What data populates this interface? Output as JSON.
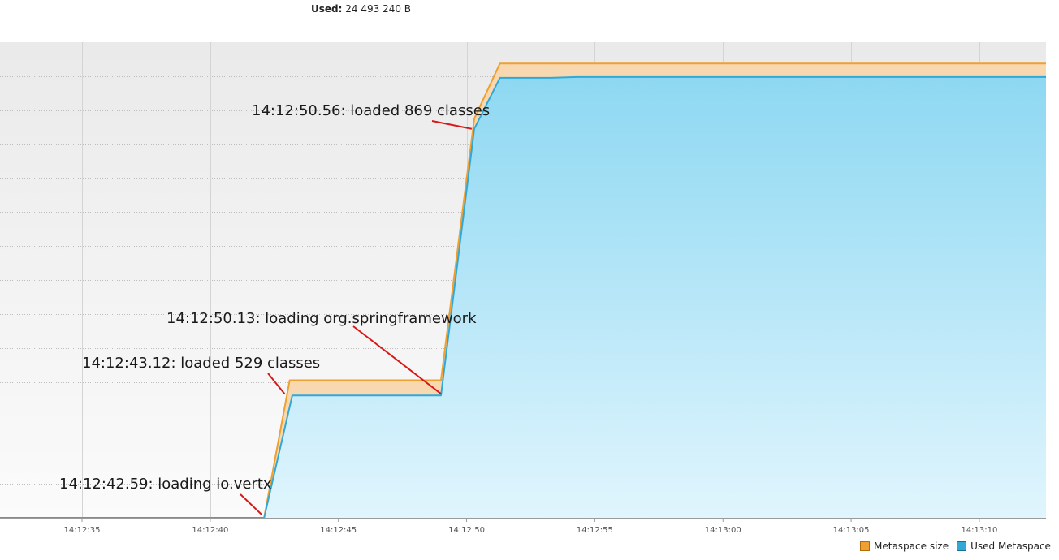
{
  "header": {
    "used_label": "Used:",
    "used_value": "24 493 240 B"
  },
  "chart_data": {
    "type": "area",
    "x_ticks": [
      "14:12:35",
      "14:12:40",
      "14:12:45",
      "14:12:50",
      "14:12:55",
      "14:13:00",
      "14:13:05",
      "14:13:10"
    ],
    "xlim": [
      "14:12:31.8",
      "14:13:12.6"
    ],
    "ylim": [
      0,
      28000000
    ],
    "grid": true,
    "legend_position": "bottom-right",
    "series": [
      {
        "name": "Metaspace size",
        "color": "#f0a030",
        "fill": "#f8d8b0",
        "points": [
          [
            "14:12:31.8",
            0
          ],
          [
            "14:12:42.1",
            0
          ],
          [
            "14:12:43.1",
            8100000
          ],
          [
            "14:12:49.0",
            8100000
          ],
          [
            "14:12:50.3",
            23500000
          ],
          [
            "14:12:51.3",
            26750000
          ],
          [
            "14:13:12.6",
            26750000
          ]
        ]
      },
      {
        "name": "Used Metaspace",
        "color": "#30a8d8",
        "fill": "#a8dff5",
        "points": [
          [
            "14:12:31.8",
            0
          ],
          [
            "14:12:42.1",
            0
          ],
          [
            "14:12:43.2",
            7200000
          ],
          [
            "14:12:49.0",
            7200000
          ],
          [
            "14:12:50.3",
            22900000
          ],
          [
            "14:12:51.3",
            25900000
          ],
          [
            "14:12:53.3",
            25900000
          ],
          [
            "14:12:54.3",
            25950000
          ],
          [
            "14:13:12.6",
            25950000
          ]
        ]
      }
    ],
    "annotations": [
      {
        "text": "14:12:50.56: loaded 869 classes",
        "time": "14:12:50.2",
        "value": 22900000
      },
      {
        "text": "14:12:50.13: loading org.springframework",
        "time": "14:12:49.0",
        "value": 7300000
      },
      {
        "text": "14:12:43.12: loaded 529 classes",
        "time": "14:12:42.9",
        "value": 7300000
      },
      {
        "text": "14:12:42.59: loading io.vertx",
        "time": "14:12:42.0",
        "value": 200000
      }
    ]
  }
}
